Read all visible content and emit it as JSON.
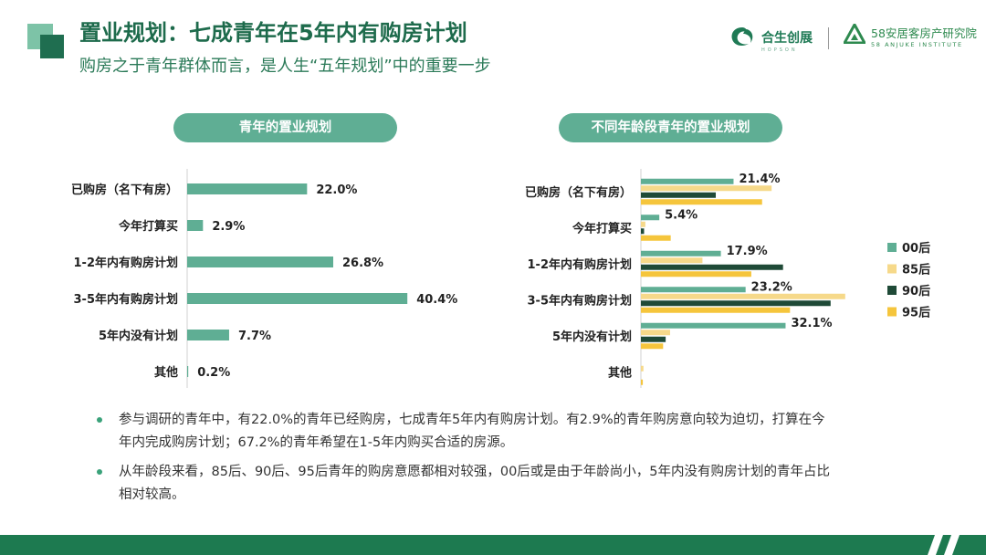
{
  "header": {
    "title": "置业规划：七成青年在5年内有购房计划",
    "subtitle": "购房之于青年群体而言，是人生“五年规划”中的重要一步"
  },
  "logos": {
    "logo1_name": "合生创展",
    "logo1_sub": "HOPSON",
    "logo2_name": "58安居客房产研究院",
    "logo2_sub": "58 ANJUKE INSTITUTE"
  },
  "colors": {
    "primary": "#1e6b4c",
    "teal": "#5fae94",
    "yellow": "#f5c53c",
    "lightYellow": "#f6d98a",
    "dark": "#1f4a37"
  },
  "chart_data": [
    {
      "type": "bar",
      "orientation": "horizontal",
      "title": "青年的置业规划",
      "categories": [
        "已购房（名下有房）",
        "今年打算买",
        "1-2年内有购房计划",
        "3-5年内有购房计划",
        "5年内没有计划",
        "其他"
      ],
      "values": [
        22.0,
        2.9,
        26.8,
        40.4,
        7.7,
        0.2
      ],
      "value_labels": [
        "22.0%",
        "2.9%",
        "26.8%",
        "40.4%",
        "7.7%",
        "0.2%"
      ],
      "unit": "%",
      "xlim": [
        0,
        45
      ]
    },
    {
      "type": "bar",
      "orientation": "horizontal",
      "title": "不同年龄段青年的置业规划",
      "categories": [
        "已购房（名下有房）",
        "今年打算买",
        "1-2年内有购房计划",
        "3-5年内有购房计划",
        "5年内没有计划",
        "其他"
      ],
      "series": [
        {
          "name": "00后",
          "color": "#5fae94",
          "values": [
            14.6,
            2.9,
            12.6,
            16.5,
            22.8,
            0.0
          ]
        },
        {
          "name": "85后",
          "color": "#f6d98a",
          "values": [
            20.6,
            0.7,
            9.7,
            32.2,
            4.6,
            0.4
          ]
        },
        {
          "name": "90后",
          "color": "#1f4a37",
          "values": [
            11.8,
            0.5,
            22.4,
            29.9,
            3.9,
            0.0
          ]
        },
        {
          "name": "95后",
          "color": "#f5c53c",
          "values": [
            19.1,
            4.7,
            17.4,
            23.5,
            3.5,
            0.3
          ]
        }
      ],
      "annotations": [
        {
          "category_index": 0,
          "label": "21.4%"
        },
        {
          "category_index": 1,
          "label": "5.4%"
        },
        {
          "category_index": 2,
          "label": "17.9%"
        },
        {
          "category_index": 3,
          "label": "23.2%"
        },
        {
          "category_index": 4,
          "label": "32.1%"
        }
      ],
      "unit": "%",
      "xlim": [
        0,
        45
      ]
    }
  ],
  "bullets": [
    {
      "line1": "参与调研的青年中，有22.0%的青年已经购房，七成青年5年内有购房计划。有2.9%的青年购房意向较为迫切，打算在今",
      "line2": "年内完成购房计划；67.2%的青年希望在1-5年内购买合适的房源。"
    },
    {
      "line1": "从年龄段来看，85后、90后、95后青年的购房意愿都相对较强，00后或是由于年龄尚小，5年内没有购房计划的青年占比",
      "line2": "相对较高。"
    }
  ]
}
